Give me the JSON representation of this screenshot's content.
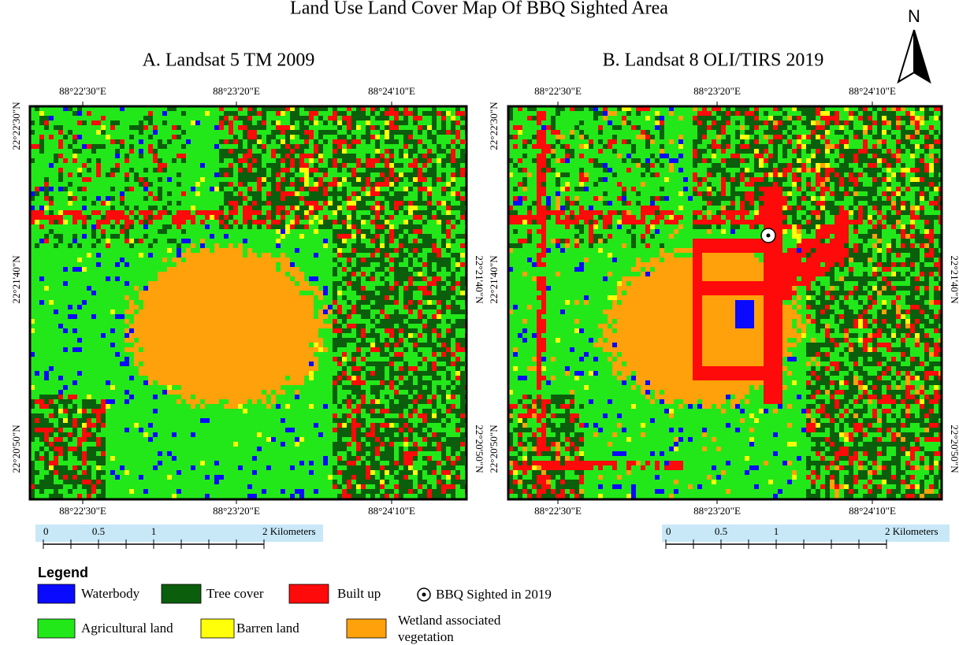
{
  "title": "Land Use Land Cover Map Of BBQ Sighted Area",
  "north_label": "N",
  "panels": [
    {
      "title": "A. Landsat 5 TM 2009",
      "top_ticks": [
        "88°22'30\"E",
        "88°23'20\"E",
        "88°24'10\"E"
      ],
      "bottom_ticks": [
        "88°22'30\"E",
        "88°23'20\"E",
        "88°24'10\"E"
      ],
      "left_ticks": [
        "22°22'30\"N",
        "22°21'40\"N",
        "22°20'50\"N"
      ],
      "right_ticks": [
        "22°21'40\"N",
        "22°20'50\"N"
      ],
      "scale_labels": [
        "0",
        "0.5",
        "1",
        "2 Kilometers"
      ]
    },
    {
      "title": "B. Landsat 8 OLI/TIRS 2019",
      "top_ticks": [
        "88°22'30\"E",
        "88°23'20\"E",
        "88°24'10\"E"
      ],
      "bottom_ticks": [
        "88°22'30\"E",
        "88°23'20\"E",
        "88°24'10\"E"
      ],
      "left_ticks": [
        "22°22'30\"N",
        "22°21'40\"N",
        "22°20'50\"N"
      ],
      "right_ticks": [
        "22°21'40\"N",
        "22°20'50\"N"
      ],
      "scale_labels": [
        "0",
        "0.5",
        "1",
        "2 Kilometers"
      ]
    }
  ],
  "legend": {
    "title": "Legend",
    "items": [
      {
        "label": "Waterbody",
        "color": "#0a0aff"
      },
      {
        "label": "Tree cover",
        "color": "#0b5e0b"
      },
      {
        "label": "Built up",
        "color": "#ff0a0a"
      },
      {
        "label": "Agricultural land",
        "color": "#22e81a"
      },
      {
        "label": "Barren land",
        "color": "#ffff0a"
      },
      {
        "label": "Wetland associated vegetation",
        "color": "#ffa10a"
      }
    ],
    "sighting": "BBQ Sighted in 2019"
  }
}
